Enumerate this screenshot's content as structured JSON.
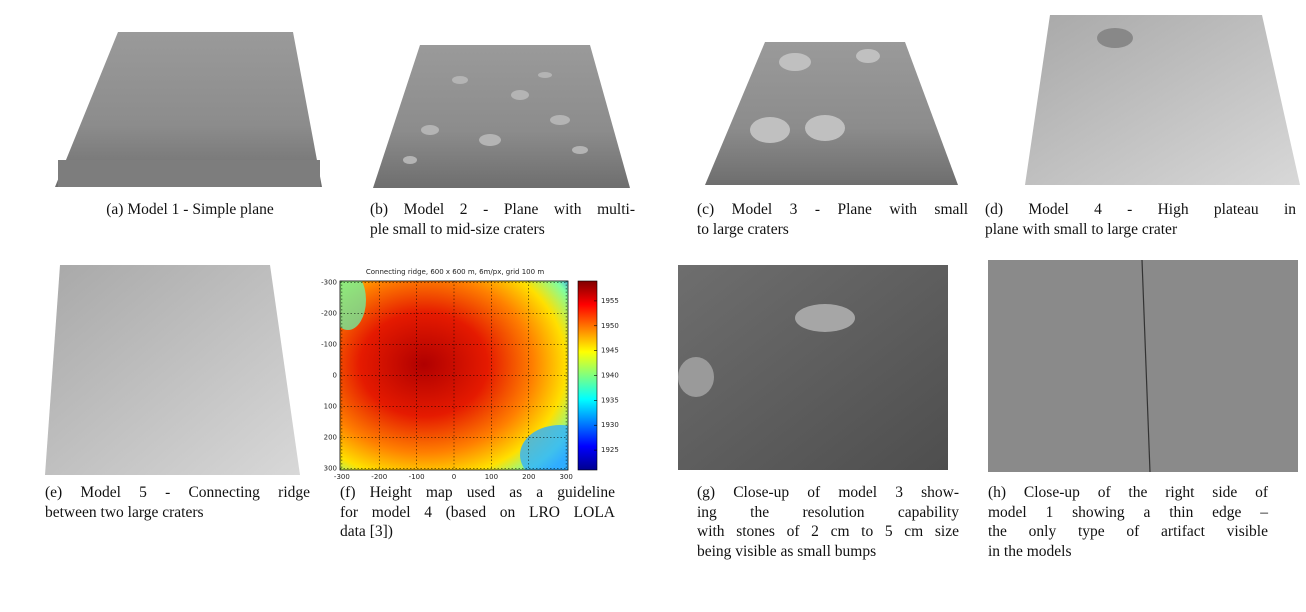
{
  "panels": [
    {
      "caption": [
        "(a) Model 1 - Simple plane"
      ]
    },
    {
      "caption": [
        "(b) Model 2 - Plane with multi-",
        "ple small to mid-size craters"
      ]
    },
    {
      "caption": [
        "(c) Model 3 - Plane with small",
        "to large craters"
      ]
    },
    {
      "caption": [
        "(d) Model 4 - High plateau in",
        "plane with small to large crater"
      ]
    },
    {
      "caption": [
        "(e) Model 5 - Connecting ridge",
        "between two large craters"
      ]
    },
    {
      "caption": [
        "(f) Height map used as a guideline",
        "for model 4 (based on LRO LOLA",
        "data [3])"
      ],
      "height_map": {
        "title": "Connecting ridge, 600 x 600 m, 6m/px, grid 100 m",
        "xlim": [
          -305,
          305
        ],
        "ylim": [
          -305,
          305
        ],
        "xticks": [
          -300,
          -200,
          -100,
          0,
          100,
          200,
          300
        ],
        "yticks": [
          -300,
          -200,
          -100,
          0,
          100,
          200,
          300
        ],
        "colorbar_lim": [
          1921,
          1959
        ],
        "colorbar_ticks": [
          1925,
          1930,
          1935,
          1940,
          1945,
          1950,
          1955
        ]
      }
    },
    {
      "caption": [
        "(g) Close-up of model 3 show-",
        "ing the resolution capability",
        "with stones of 2 cm to 5 cm size",
        "being visible as small bumps"
      ]
    },
    {
      "caption": [
        "(h) Close-up of the right side of",
        "model 1 showing a thin edge –",
        "the only type of artifact visible",
        "in the models"
      ]
    }
  ]
}
